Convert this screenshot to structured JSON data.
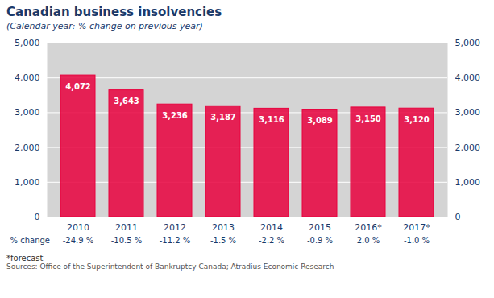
{
  "chart_data": {
    "type": "bar",
    "title": "Canadian business insolvencies",
    "subtitle": "(Calendar year: % change on previous year)",
    "categories": [
      "2010",
      "2011",
      "2012",
      "2013",
      "2014",
      "2015",
      "2016*",
      "2017*"
    ],
    "values": [
      4072,
      3643,
      3236,
      3187,
      3116,
      3089,
      3150,
      3120
    ],
    "value_labels": [
      "4,072",
      "3,643",
      "3,236",
      "3,187",
      "3,116",
      "3,089",
      "3,150",
      "3,120"
    ],
    "data_labels": true,
    "pct_change_label": "% change",
    "pct_change": [
      "-24.9 %",
      "-10.5 %",
      "-11.2 %",
      "-1.5 %",
      "-2.2 %",
      "-0.9 %",
      "2.0 %",
      "-1.0 %"
    ],
    "notes": [
      "*forecast",
      "Sources: Office of the Superintendent of Bankruptcy Canada; Atradius Economic Research"
    ],
    "color": "#e8003d",
    "ylim": [
      0,
      5000
    ],
    "yticks": [
      0,
      {
        "value": 1000,
        "label": "1,000"
      },
      {
        "value": 2000,
        "label": "2,000"
      },
      {
        "value": 3000,
        "label": "3,000"
      },
      {
        "value": 4000,
        "label": "4,000"
      },
      {
        "value": 5000,
        "label": "5,000"
      }
    ],
    "grid": true
  }
}
